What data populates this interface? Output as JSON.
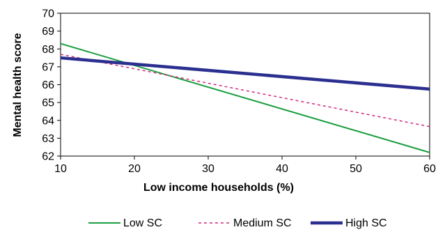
{
  "chart_data": {
    "type": "line",
    "title": "",
    "xlabel": "Low income households (%)",
    "ylabel": "Mental health score",
    "x": [
      10,
      60
    ],
    "xlim": [
      10,
      60
    ],
    "ylim": [
      62,
      70
    ],
    "xticks": [
      "10",
      "20",
      "30",
      "40",
      "50",
      "60"
    ],
    "yticks": [
      "62",
      "63",
      "64",
      "65",
      "66",
      "67",
      "68",
      "69",
      "70"
    ],
    "grid": false,
    "legend_position": "bottom",
    "series": [
      {
        "name": "Low SC",
        "values": [
          68.3,
          62.2
        ],
        "color": "#1a9e3f",
        "style": "solid"
      },
      {
        "name": "Medium SC",
        "values": [
          67.7,
          63.65
        ],
        "color": "#d4267e",
        "style": "dashed"
      },
      {
        "name": "High SC",
        "values": [
          67.5,
          65.75
        ],
        "color": "#2b2f8f",
        "style": "thick"
      }
    ]
  }
}
